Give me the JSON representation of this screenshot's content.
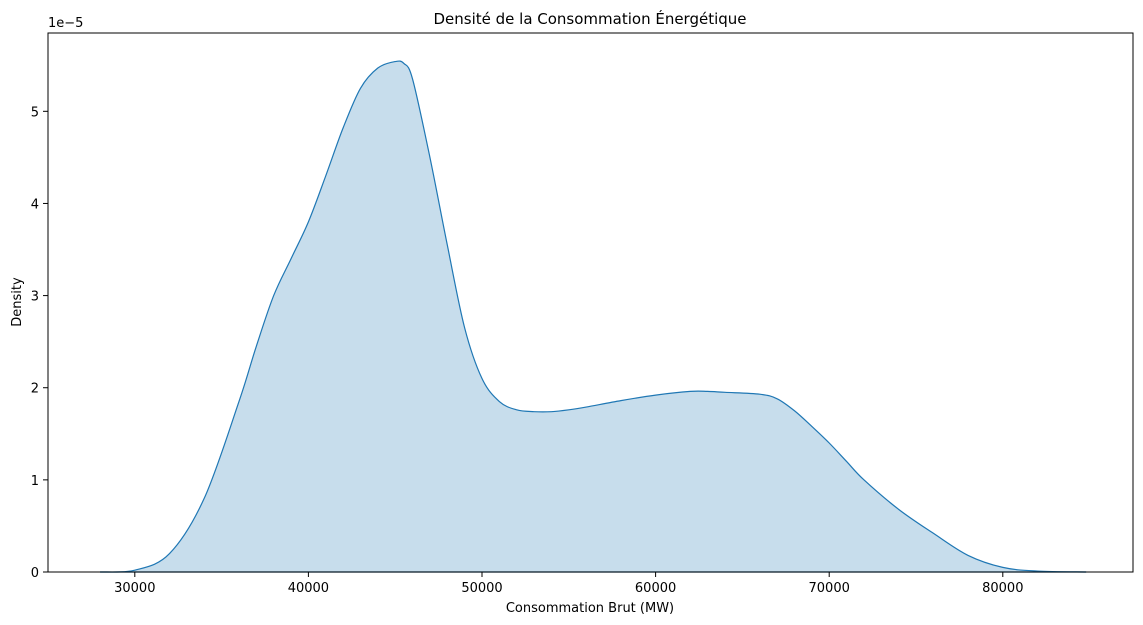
{
  "chart_data": {
    "type": "area",
    "title": "Densité de la Consommation Énergétique",
    "xlabel": "Consommation Brut (MW)",
    "ylabel": "Density",
    "y_offset_label": "1e−5",
    "y_scale": 1e-05,
    "xlim": [
      25000,
      87500
    ],
    "ylim": [
      0,
      5.85
    ],
    "x_ticks": [
      30000,
      40000,
      50000,
      60000,
      70000,
      80000
    ],
    "x_tick_labels": [
      "30000",
      "40000",
      "50000",
      "60000",
      "70000",
      "80000"
    ],
    "y_ticks": [
      0,
      1,
      2,
      3,
      4,
      5
    ],
    "y_tick_labels": [
      "0",
      "1",
      "2",
      "3",
      "4",
      "5"
    ],
    "grid": false,
    "series": [
      {
        "color": "#1f77b4",
        "fill_color": "#1f77b4",
        "fill_opacity": 0.25,
        "x": [
          28000,
          30000,
          32000,
          34000,
          36000,
          37000,
          38000,
          39000,
          40000,
          41000,
          42000,
          43000,
          44000,
          45000,
          45500,
          46000,
          47000,
          48000,
          49000,
          50000,
          51000,
          52000,
          53000,
          54000,
          55000,
          56000,
          58000,
          60000,
          62000,
          63000,
          64000,
          66000,
          67000,
          68000,
          69000,
          70000,
          71000,
          72000,
          74000,
          76000,
          78000,
          80000,
          82000,
          84800
        ],
        "y": [
          0.0,
          0.02,
          0.2,
          0.8,
          1.85,
          2.45,
          3.0,
          3.4,
          3.8,
          4.3,
          4.82,
          5.25,
          5.47,
          5.54,
          5.52,
          5.35,
          4.5,
          3.55,
          2.65,
          2.1,
          1.85,
          1.76,
          1.74,
          1.74,
          1.76,
          1.79,
          1.86,
          1.92,
          1.96,
          1.96,
          1.95,
          1.93,
          1.88,
          1.75,
          1.58,
          1.4,
          1.2,
          1.0,
          0.68,
          0.42,
          0.18,
          0.05,
          0.01,
          0.0
        ]
      }
    ]
  }
}
